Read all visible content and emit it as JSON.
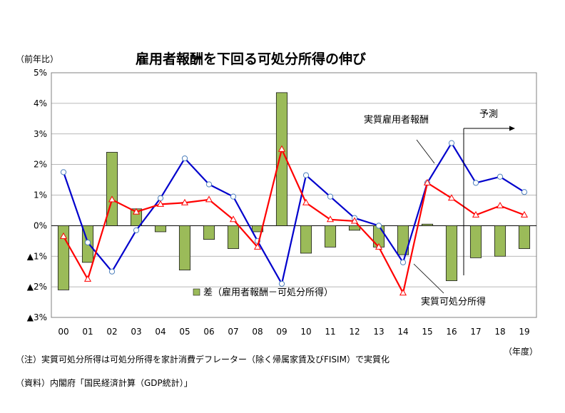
{
  "chart_data": {
    "type": "bar+line",
    "title": "雇用者報酬を下回る可処分所得の伸び",
    "y_unit_label": "（前年比）",
    "x_unit_label": "（年度）",
    "ylim": [
      -3,
      5
    ],
    "y_ticks": [
      {
        "value": 5,
        "label": "5%"
      },
      {
        "value": 4,
        "label": "4%"
      },
      {
        "value": 3,
        "label": "3%"
      },
      {
        "value": 2,
        "label": "2%"
      },
      {
        "value": 1,
        "label": "1%"
      },
      {
        "value": 0,
        "label": "0%"
      },
      {
        "value": -1,
        "label": "▲1%"
      },
      {
        "value": -2,
        "label": "▲2%"
      },
      {
        "value": -3,
        "label": "▲3%"
      }
    ],
    "categories": [
      "00",
      "01",
      "02",
      "03",
      "04",
      "05",
      "06",
      "07",
      "08",
      "09",
      "10",
      "11",
      "12",
      "13",
      "14",
      "15",
      "16",
      "17",
      "18",
      "19"
    ],
    "series": [
      {
        "name": "差（雇用者報酬－可処分所得）",
        "kind": "bar",
        "color": "#9bbb59",
        "values": [
          -2.1,
          -1.2,
          2.4,
          0.55,
          -0.2,
          -1.45,
          -0.45,
          -0.75,
          -0.2,
          4.35,
          -0.9,
          -0.7,
          -0.15,
          -0.7,
          -0.95,
          0.05,
          -1.8,
          -1.05,
          -1.0,
          -0.75
        ]
      },
      {
        "name": "実質雇用者報酬",
        "kind": "line",
        "marker": "circle",
        "color": "#0000cc",
        "values": [
          1.75,
          -0.55,
          -1.5,
          -0.15,
          0.9,
          2.2,
          1.35,
          0.95,
          -0.5,
          -1.9,
          1.65,
          0.95,
          0.25,
          0.0,
          -1.2,
          1.4,
          2.7,
          1.4,
          1.6,
          1.1
        ]
      },
      {
        "name": "実質可処分所得",
        "kind": "line",
        "marker": "triangle",
        "color": "#ff0000",
        "values": [
          -0.35,
          -1.75,
          0.85,
          0.45,
          0.7,
          0.75,
          0.85,
          0.2,
          -0.7,
          2.5,
          0.75,
          0.2,
          0.15,
          -0.7,
          -2.2,
          1.4,
          0.9,
          0.35,
          0.65,
          0.35
        ]
      }
    ],
    "annotations": {
      "forecast_label": "予測",
      "forecast_start_category": "17",
      "compensation_label": "実質雇用者報酬",
      "disposable_label": "実質可処分所得",
      "bar_legend": "差（雇用者報酬－可処分所得）"
    },
    "grid": true
  },
  "notes": {
    "note1": "（注）実質可処分所得は可処分所得を家計消費デフレーター（除く帰属家賃及びFISIM）で実質化",
    "note2": "（資料）内閣府「国民経済計算（GDP統計）」"
  }
}
